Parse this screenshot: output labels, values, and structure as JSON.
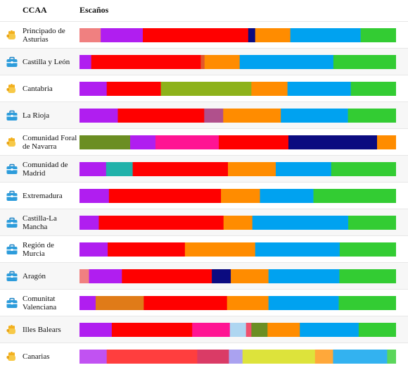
{
  "header": {
    "ccaa": "CCAA",
    "escanos": "Escaños"
  },
  "icons": {
    "fist": "raised-fist-icon",
    "briefcase": "briefcase-icon"
  },
  "chart_data": {
    "type": "bar",
    "orientation": "horizontal-stacked-normalized",
    "xlabel": "Escaños",
    "ylabel": "CCAA",
    "grid": false,
    "legend": "none",
    "units": "percent",
    "rows": [
      {
        "name": "Principado de Asturias",
        "icon": "fist",
        "segments": [
          [
            "#F08080",
            6.7
          ],
          [
            "#B01EF0",
            13.3
          ],
          [
            "#FF0000",
            33.3
          ],
          [
            "#0B0B80",
            2.2
          ],
          [
            "#FF8C00",
            11.1
          ],
          [
            "#00A2F0",
            22.2
          ],
          [
            "#33CC33",
            11.2
          ]
        ]
      },
      {
        "name": "Castilla y León",
        "icon": "briefcase",
        "segments": [
          [
            "#B01EF0",
            3.7
          ],
          [
            "#FF0000",
            34.6
          ],
          [
            "#E2572C",
            1.2
          ],
          [
            "#FF8C00",
            11.1
          ],
          [
            "#00A2F0",
            29.6
          ],
          [
            "#33CC33",
            19.8
          ]
        ]
      },
      {
        "name": "Cantabria",
        "icon": "fist",
        "segments": [
          [
            "#B01EF0",
            8.6
          ],
          [
            "#FF0000",
            17.1
          ],
          [
            "#8DB21A",
            28.6
          ],
          [
            "#FF8C00",
            11.4
          ],
          [
            "#00A2F0",
            20.0
          ],
          [
            "#33CC33",
            14.3
          ]
        ]
      },
      {
        "name": "La Rioja",
        "icon": "briefcase",
        "segments": [
          [
            "#B01EF0",
            12.1
          ],
          [
            "#FF0000",
            27.3
          ],
          [
            "#B0508C",
            6.0
          ],
          [
            "#FF8C00",
            18.2
          ],
          [
            "#00A2F0",
            21.2
          ],
          [
            "#33CC33",
            15.2
          ]
        ]
      },
      {
        "name": "Comunidad Foral de Navarra",
        "icon": "fist",
        "segments": [
          [
            "#6B8E23",
            16.0
          ],
          [
            "#B01EF0",
            8.0
          ],
          [
            "#FF1493",
            20.0
          ],
          [
            "#FF0000",
            22.0
          ],
          [
            "#0B0B80",
            28.0
          ],
          [
            "#FF8C00",
            6.0
          ]
        ]
      },
      {
        "name": "Comunidad de Madrid",
        "icon": "briefcase",
        "segments": [
          [
            "#B01EF0",
            8.4
          ],
          [
            "#20B2AA",
            8.4
          ],
          [
            "#FF0000",
            30.1
          ],
          [
            "#FF8C00",
            15.1
          ],
          [
            "#00A2F0",
            17.5
          ],
          [
            "#33CC33",
            20.5
          ]
        ]
      },
      {
        "name": "Extremadura",
        "icon": "briefcase",
        "segments": [
          [
            "#B01EF0",
            9.3
          ],
          [
            "#FF0000",
            35.4
          ],
          [
            "#FF8C00",
            12.3
          ],
          [
            "#00A2F0",
            16.9
          ],
          [
            "#33CC33",
            26.1
          ]
        ]
      },
      {
        "name": "Castilla-La Mancha",
        "icon": "briefcase",
        "segments": [
          [
            "#B01EF0",
            6.1
          ],
          [
            "#FF0000",
            39.4
          ],
          [
            "#FF8C00",
            9.1
          ],
          [
            "#00A2F0",
            30.3
          ],
          [
            "#33CC33",
            15.1
          ]
        ]
      },
      {
        "name": "Región de Murcia",
        "icon": "briefcase",
        "segments": [
          [
            "#B01EF0",
            8.9
          ],
          [
            "#FF0000",
            24.4
          ],
          [
            "#FF8C00",
            22.2
          ],
          [
            "#00A2F0",
            26.7
          ],
          [
            "#33CC33",
            17.8
          ]
        ]
      },
      {
        "name": "Aragón",
        "icon": "briefcase",
        "segments": [
          [
            "#F08080",
            3.0
          ],
          [
            "#B01EF0",
            10.4
          ],
          [
            "#FF0000",
            28.4
          ],
          [
            "#0B0B80",
            6.0
          ],
          [
            "#FF8C00",
            11.9
          ],
          [
            "#00A2F0",
            22.4
          ],
          [
            "#33CC33",
            17.9
          ]
        ]
      },
      {
        "name": "Comunitat Valenciana",
        "icon": "briefcase",
        "segments": [
          [
            "#B01EF0",
            5.1
          ],
          [
            "#E07B18",
            15.2
          ],
          [
            "#FF0000",
            26.3
          ],
          [
            "#FF8C00",
            13.1
          ],
          [
            "#00A2F0",
            22.2
          ],
          [
            "#33CC33",
            18.1
          ]
        ]
      },
      {
        "name": "Illes Balears",
        "icon": "fist",
        "segments": [
          [
            "#B01EF0",
            10.2
          ],
          [
            "#FF0000",
            25.4
          ],
          [
            "#FF1493",
            11.9
          ],
          [
            "#AED6F1",
            5.1
          ],
          [
            "#F0506E",
            1.7
          ],
          [
            "#6B8E23",
            5.1
          ],
          [
            "#FF8C00",
            10.2
          ],
          [
            "#00A2F0",
            18.6
          ],
          [
            "#33CC33",
            11.8
          ]
        ]
      },
      {
        "name": "Canarias",
        "icon": "fist",
        "segments": [
          [
            "#C152F2",
            8.6
          ],
          [
            "#FF3E3E",
            28.6
          ],
          [
            "#DA3B66",
            10.0
          ],
          [
            "#AAA2F0",
            4.3
          ],
          [
            "#DDE33B",
            22.9
          ],
          [
            "#FFA83A",
            5.7
          ],
          [
            "#33B2F0",
            17.1
          ],
          [
            "#5BD65B",
            2.8
          ]
        ]
      }
    ]
  }
}
